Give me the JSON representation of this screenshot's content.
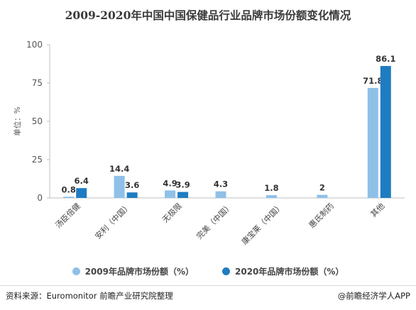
{
  "chart_data": {
    "type": "bar",
    "title": "2009-2020年中国中国保健品行业品牌市场份额变化情况",
    "ylabel": "单位：%",
    "ylim": [
      0,
      100
    ],
    "yticks": [
      "0",
      "25",
      "50",
      "75",
      "100"
    ],
    "categories": [
      "汤臣倍健",
      "安利（中国）",
      "无极限",
      "完美（中国）",
      "康宝莱（中国）",
      "惠氏制药",
      "其他"
    ],
    "series": [
      {
        "name": "2009年品牌市场份额（%）",
        "color": "#8fc0e8",
        "values": [
          0.8,
          14.4,
          4.9,
          4.3,
          1.8,
          2,
          71.8
        ],
        "labels": [
          "0.8",
          "14.4",
          "4.9",
          "4.3",
          "1.8",
          "2",
          "71.8"
        ]
      },
      {
        "name": "2020年品牌市场份额（%）",
        "color": "#1f7cc1",
        "values": [
          6.4,
          3.6,
          3.9,
          null,
          null,
          null,
          86.1
        ],
        "labels": [
          "6.4",
          "3.6",
          "3.9",
          null,
          null,
          null,
          "86.1"
        ]
      }
    ],
    "legend_position": "bottom",
    "grid": false
  },
  "source": "资料来源：Euromonitor 前瞻产业研究院整理",
  "credit": "@前瞻经济学人APP"
}
